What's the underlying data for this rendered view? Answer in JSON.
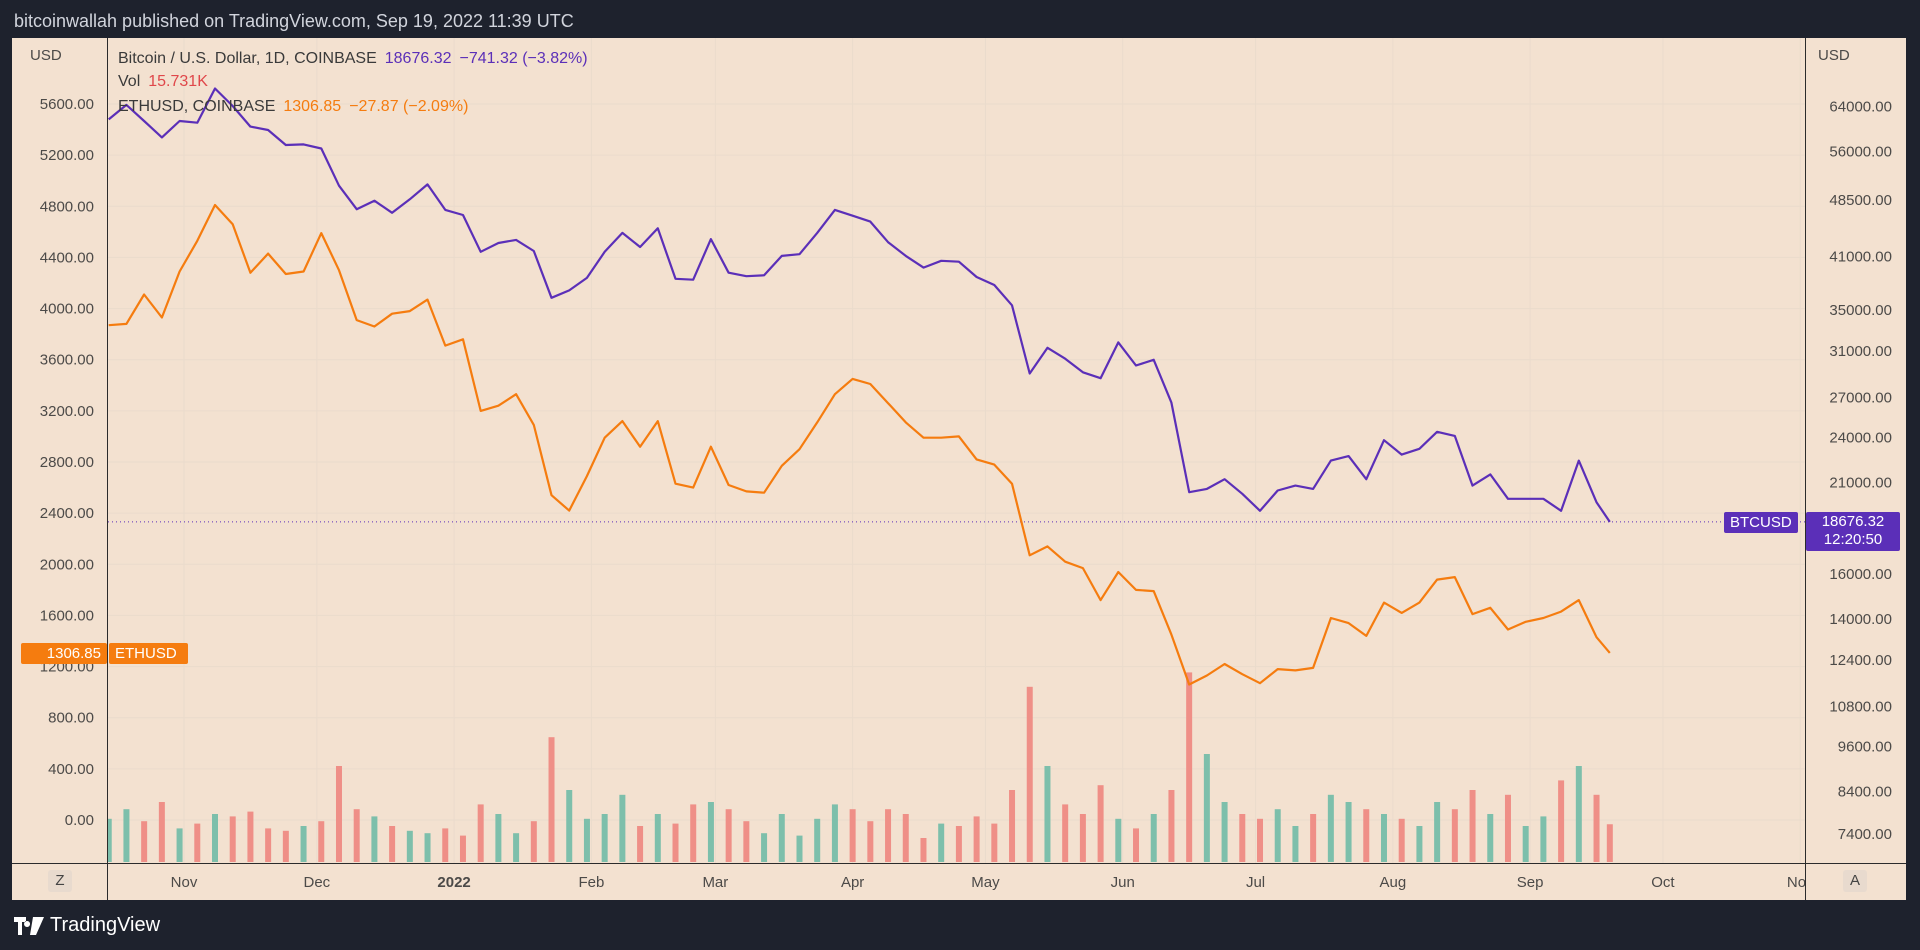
{
  "header": {
    "published": "bitcoinwallah published on TradingView.com, Sep 19, 2022 11:39 UTC"
  },
  "legend": {
    "btc_title": "Bitcoin / U.S. Dollar, 1D, COINBASE",
    "btc_price": "18676.32",
    "btc_change": "−741.32 (−3.82%)",
    "vol_title": "Vol",
    "vol_value": "15.731K",
    "eth_title": "ETHUSD, COINBASE",
    "eth_price": "1306.85",
    "eth_change": "−27.87 (−2.09%)"
  },
  "tags": {
    "btc_symbol": "BTCUSD",
    "btc_price": "18676.32",
    "btc_countdown": "12:20:50",
    "eth_symbol": "ETHUSD",
    "eth_price": "1306.85"
  },
  "buttons": {
    "left": "Z",
    "right": "A"
  },
  "footer": {
    "brand": "TradingView"
  },
  "colors": {
    "btc": "#5b2fb8",
    "eth": "#f57c0f",
    "vol_up": "#7dbfab",
    "vol_down": "#ef8f87",
    "background": "#f3e1d0"
  },
  "chart_data": {
    "type": "line",
    "left_axis": {
      "label": "USD",
      "series": "ETHUSD",
      "scale": "linear",
      "ticks": [
        5600,
        5200,
        4800,
        4400,
        4000,
        3600,
        3200,
        2800,
        2400,
        2000,
        1600,
        1200,
        800,
        400,
        0
      ]
    },
    "right_axis": {
      "label": "USD",
      "series": "BTCUSD",
      "scale": "log",
      "ticks": [
        64000,
        56000,
        48500,
        41000,
        35000,
        31000,
        27000,
        24000,
        21000,
        16000,
        14000,
        12400,
        10800,
        9600,
        8400,
        7400
      ]
    },
    "x_ticks": [
      {
        "label": "Nov",
        "date": "2021-11-01"
      },
      {
        "label": "Dec",
        "date": "2021-12-01"
      },
      {
        "label": "2022",
        "date": "2022-01-01"
      },
      {
        "label": "Feb",
        "date": "2022-02-01"
      },
      {
        "label": "Mar",
        "date": "2022-03-01"
      },
      {
        "label": "Apr",
        "date": "2022-04-01"
      },
      {
        "label": "May",
        "date": "2022-05-01"
      },
      {
        "label": "Jun",
        "date": "2022-06-01"
      },
      {
        "label": "Jul",
        "date": "2022-07-01"
      },
      {
        "label": "Aug",
        "date": "2022-08-01"
      },
      {
        "label": "Sep",
        "date": "2022-09-01"
      },
      {
        "label": "Oct",
        "date": "2022-10-01"
      },
      {
        "label": "Nov",
        "date": "2022-11-01"
      }
    ],
    "columns": [
      "date",
      "BTCUSD",
      "ETHUSD",
      "Vol (K)"
    ],
    "rows": [
      [
        "2021-10-15",
        61600,
        3870,
        18
      ],
      [
        "2021-10-19",
        64300,
        3880,
        22
      ],
      [
        "2021-10-23",
        61300,
        4110,
        17
      ],
      [
        "2021-10-27",
        58400,
        3930,
        25
      ],
      [
        "2021-10-31",
        61300,
        4290,
        14
      ],
      [
        "2021-11-04",
        61000,
        4530,
        16
      ],
      [
        "2021-11-08",
        67500,
        4810,
        20
      ],
      [
        "2021-11-12",
        64100,
        4660,
        19
      ],
      [
        "2021-11-16",
        60300,
        4280,
        21
      ],
      [
        "2021-11-20",
        59700,
        4430,
        14
      ],
      [
        "2021-11-24",
        57100,
        4270,
        13
      ],
      [
        "2021-11-28",
        57200,
        4290,
        15
      ],
      [
        "2021-12-02",
        56500,
        4590,
        17
      ],
      [
        "2021-12-06",
        50600,
        4300,
        40
      ],
      [
        "2021-12-10",
        47200,
        3910,
        22
      ],
      [
        "2021-12-14",
        48400,
        3860,
        19
      ],
      [
        "2021-12-18",
        46700,
        3960,
        15
      ],
      [
        "2021-12-22",
        48600,
        3980,
        13
      ],
      [
        "2021-12-26",
        50800,
        4070,
        12
      ],
      [
        "2021-12-30",
        47100,
        3710,
        14
      ],
      [
        "2022-01-03",
        46400,
        3760,
        11
      ],
      [
        "2022-01-07",
        41600,
        3200,
        24
      ],
      [
        "2022-01-11",
        42700,
        3240,
        20
      ],
      [
        "2022-01-15",
        43100,
        3330,
        12
      ],
      [
        "2022-01-19",
        41700,
        3090,
        17
      ],
      [
        "2022-01-23",
        36300,
        2540,
        52
      ],
      [
        "2022-01-27",
        37100,
        2420,
        30
      ],
      [
        "2022-01-31",
        38500,
        2690,
        18
      ],
      [
        "2022-02-04",
        41600,
        2990,
        20
      ],
      [
        "2022-02-08",
        44000,
        3120,
        28
      ],
      [
        "2022-02-12",
        42200,
        2920,
        15
      ],
      [
        "2022-02-16",
        44600,
        3120,
        20
      ],
      [
        "2022-02-20",
        38400,
        2630,
        16
      ],
      [
        "2022-02-24",
        38300,
        2600,
        24
      ],
      [
        "2022-02-28",
        43200,
        2920,
        25
      ],
      [
        "2022-03-04",
        39100,
        2620,
        22
      ],
      [
        "2022-03-08",
        38700,
        2570,
        17
      ],
      [
        "2022-03-12",
        38800,
        2560,
        12
      ],
      [
        "2022-03-16",
        41100,
        2770,
        20
      ],
      [
        "2022-03-20",
        41300,
        2900,
        11
      ],
      [
        "2022-03-24",
        44000,
        3110,
        18
      ],
      [
        "2022-03-28",
        47100,
        3330,
        24
      ],
      [
        "2022-04-01",
        46300,
        3450,
        22
      ],
      [
        "2022-04-05",
        45500,
        3410,
        17
      ],
      [
        "2022-04-09",
        42800,
        3260,
        22
      ],
      [
        "2022-04-13",
        41100,
        3110,
        20
      ],
      [
        "2022-04-17",
        39700,
        2990,
        10
      ],
      [
        "2022-04-21",
        40500,
        2990,
        16
      ],
      [
        "2022-04-25",
        40400,
        3000,
        15
      ],
      [
        "2022-04-29",
        38600,
        2820,
        19
      ],
      [
        "2022-05-03",
        37700,
        2780,
        16
      ],
      [
        "2022-05-07",
        35500,
        2630,
        30
      ],
      [
        "2022-05-11",
        29000,
        2070,
        73
      ],
      [
        "2022-05-15",
        31300,
        2140,
        40
      ],
      [
        "2022-05-19",
        30300,
        2020,
        24
      ],
      [
        "2022-05-23",
        29100,
        1970,
        20
      ],
      [
        "2022-05-27",
        28600,
        1720,
        32
      ],
      [
        "2022-05-31",
        31800,
        1940,
        18
      ],
      [
        "2022-06-04",
        29700,
        1800,
        14
      ],
      [
        "2022-06-08",
        30200,
        1790,
        20
      ],
      [
        "2022-06-12",
        26600,
        1450,
        30
      ],
      [
        "2022-06-16",
        20400,
        1060,
        79
      ],
      [
        "2022-06-20",
        20600,
        1130,
        45
      ],
      [
        "2022-06-24",
        21200,
        1220,
        25
      ],
      [
        "2022-06-28",
        20300,
        1140,
        20
      ],
      [
        "2022-07-02",
        19300,
        1070,
        18
      ],
      [
        "2022-07-06",
        20500,
        1180,
        22
      ],
      [
        "2022-07-10",
        20800,
        1170,
        15
      ],
      [
        "2022-07-14",
        20600,
        1190,
        20
      ],
      [
        "2022-07-18",
        22400,
        1580,
        28
      ],
      [
        "2022-07-22",
        22700,
        1540,
        25
      ],
      [
        "2022-07-26",
        21200,
        1440,
        22
      ],
      [
        "2022-07-30",
        23800,
        1700,
        20
      ],
      [
        "2022-08-03",
        22800,
        1620,
        18
      ],
      [
        "2022-08-07",
        23200,
        1700,
        15
      ],
      [
        "2022-08-11",
        24400,
        1880,
        25
      ],
      [
        "2022-08-15",
        24100,
        1900,
        22
      ],
      [
        "2022-08-19",
        20800,
        1610,
        30
      ],
      [
        "2022-08-23",
        21500,
        1660,
        20
      ],
      [
        "2022-08-27",
        20000,
        1490,
        28
      ],
      [
        "2022-08-31",
        20000,
        1550,
        15
      ],
      [
        "2022-09-04",
        20000,
        1580,
        19
      ],
      [
        "2022-09-08",
        19300,
        1630,
        34
      ],
      [
        "2022-09-12",
        22400,
        1720,
        40
      ],
      [
        "2022-09-16",
        19800,
        1430,
        28
      ],
      [
        "2022-09-19",
        18676.32,
        1306.85,
        15.731
      ]
    ],
    "last_price_line": {
      "series": "BTCUSD",
      "value": 18676.32
    },
    "grid": true,
    "legend_position": "top-left"
  }
}
